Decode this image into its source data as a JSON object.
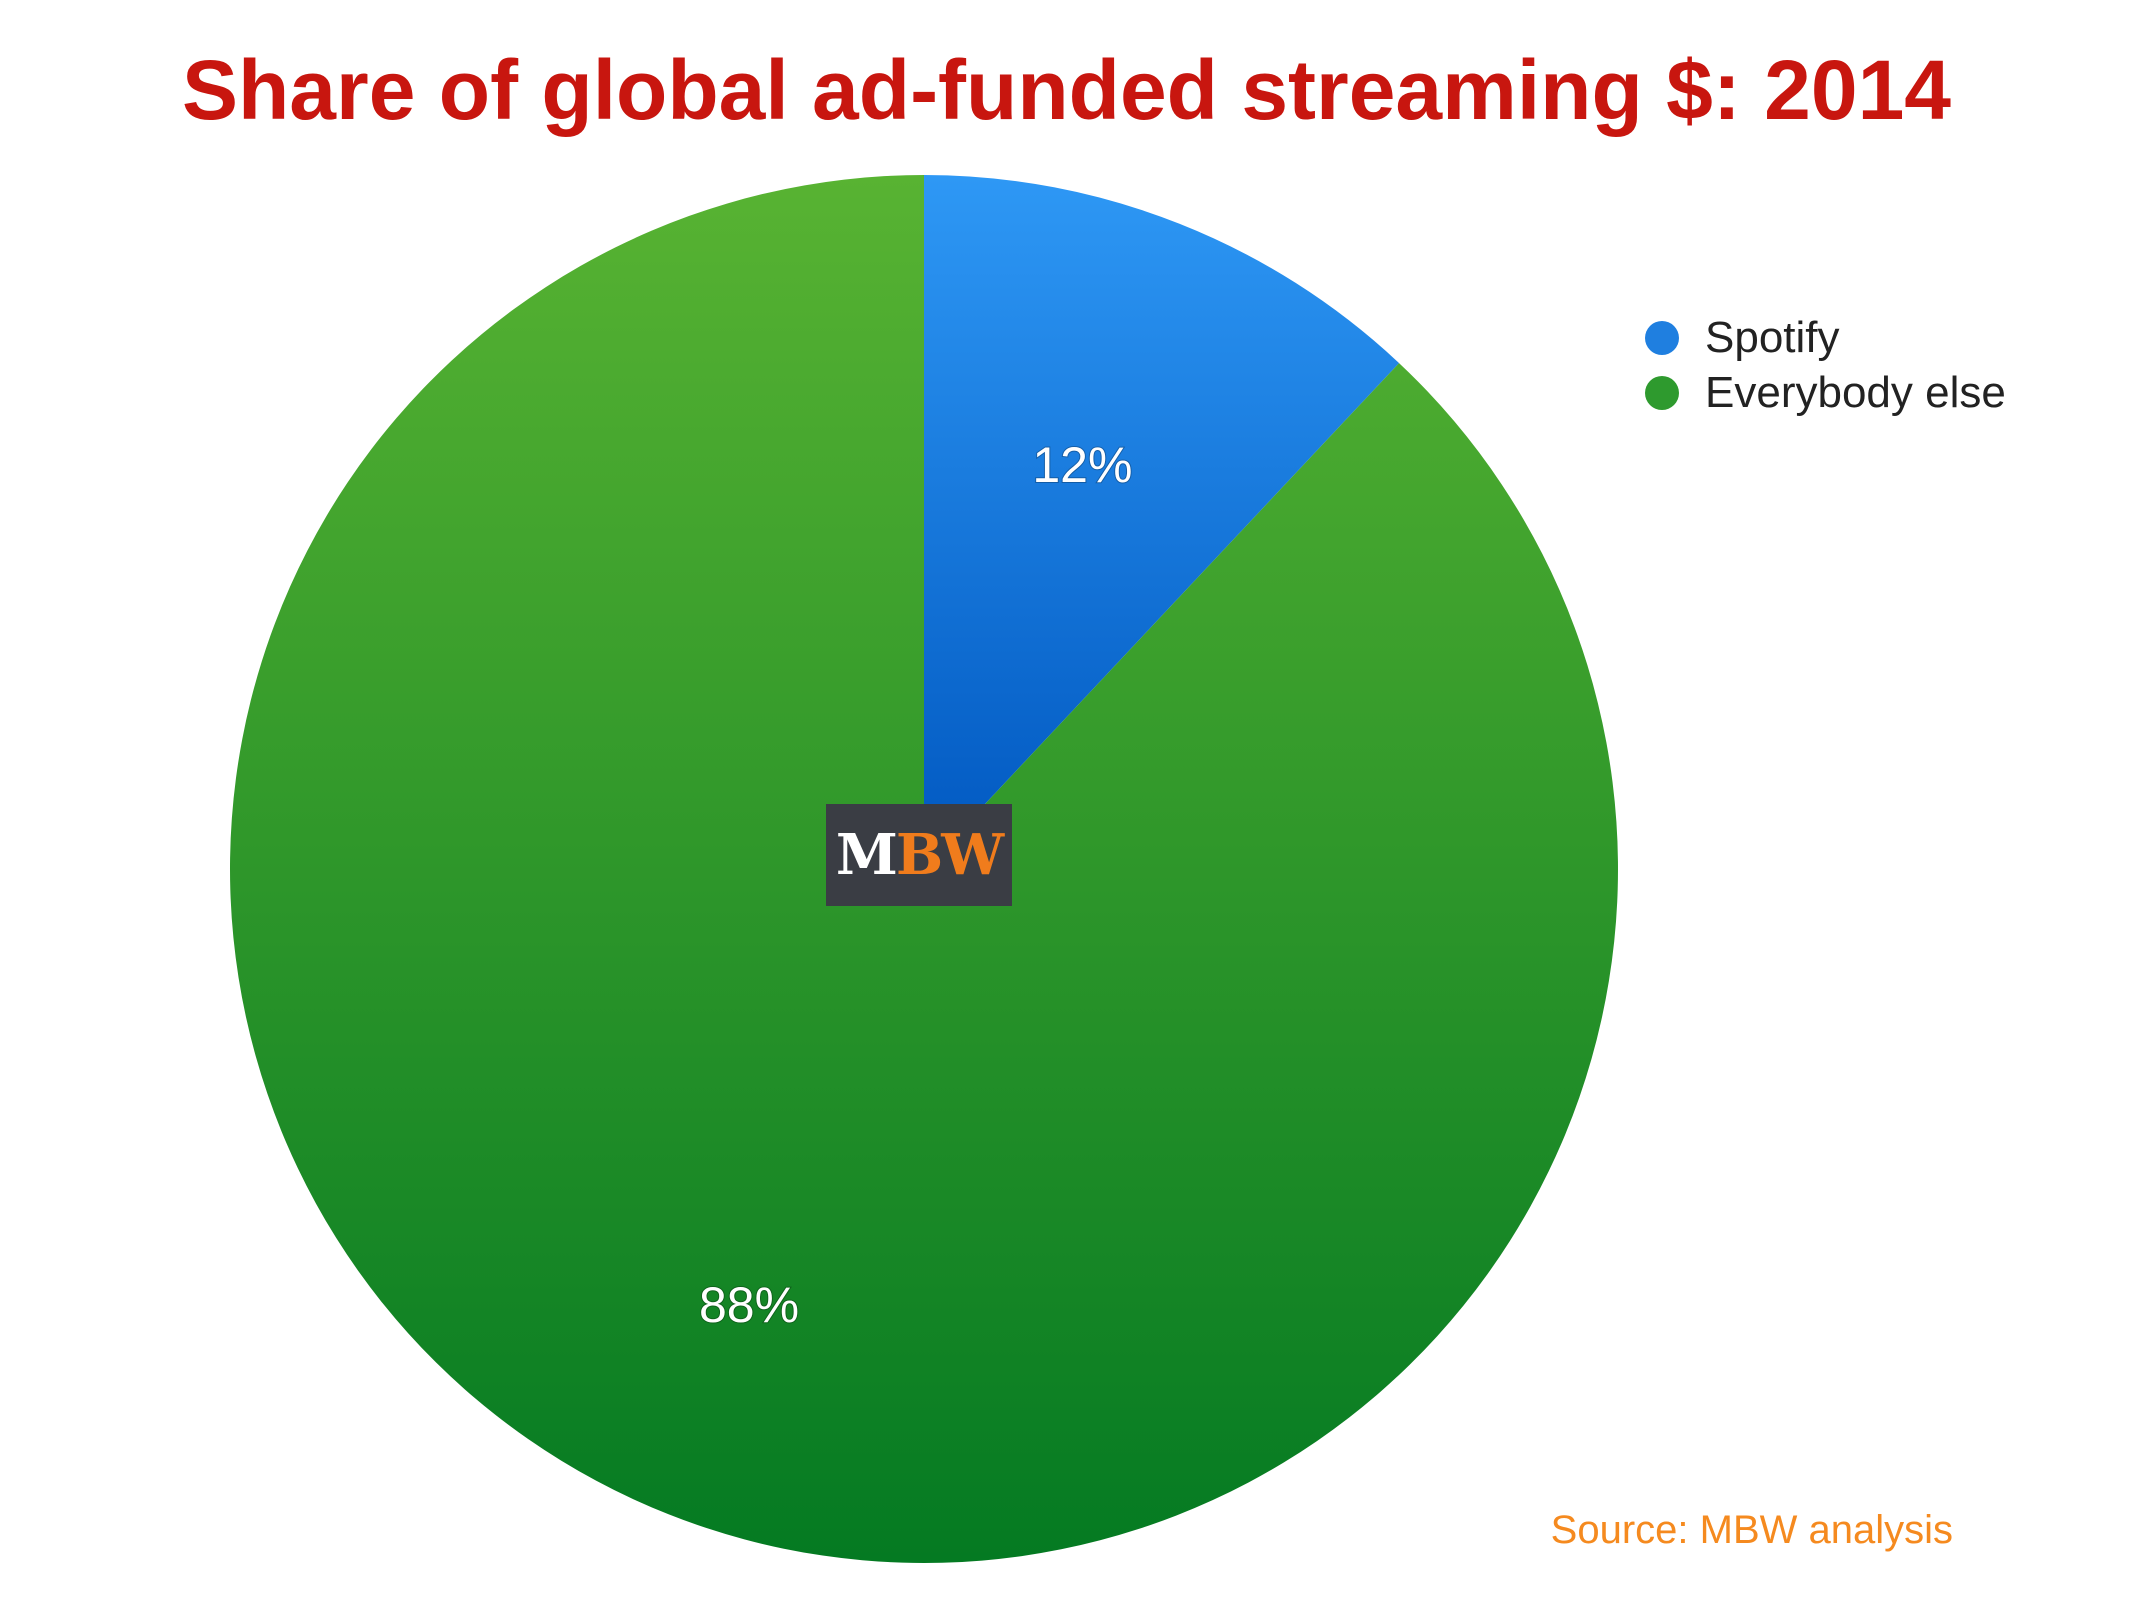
{
  "chart_data": {
    "type": "pie",
    "title": "Share of global ad-funded streaming $: 2014",
    "categories": [
      "Spotify",
      "Everybody else"
    ],
    "values": [
      12,
      88
    ],
    "value_labels": [
      "12%",
      "88%"
    ],
    "colors": [
      "#1f7fe0",
      "#2e9a2e"
    ],
    "legend_position": "top-right",
    "start_angle": "12 o'clock",
    "direction": "clockwise"
  },
  "logo": {
    "text_m": "M",
    "text_bw": "BW",
    "background": "#3a3d44",
    "accent": "#f07c1c"
  },
  "source_note": "Source: MBW analysis",
  "colors": {
    "title": "#c8160f",
    "source": "#f58a1f"
  }
}
